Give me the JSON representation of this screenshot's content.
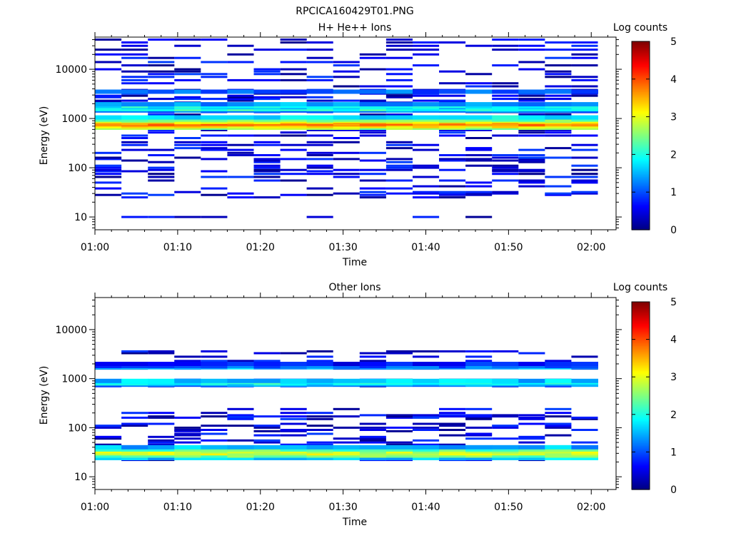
{
  "figure_title": "RPCICA160429T01.PNG",
  "colors": {
    "axis": "#000000",
    "background": "#ffffff"
  },
  "chart_data": [
    {
      "type": "heatmap",
      "title": "H+ He++ Ions",
      "xlabel": "Time",
      "ylabel": "Energy (eV)",
      "xtick_labels": [
        "01:00",
        "01:10",
        "01:20",
        "01:30",
        "01:40",
        "01:50",
        "02:00"
      ],
      "ytick_labels": [
        "10",
        "100",
        "1000",
        "10000"
      ],
      "y_scale": "log",
      "ylim": [
        5.5,
        45000
      ],
      "xlim_minutes": [
        0,
        63
      ],
      "colorbar": {
        "label": "Log counts",
        "ticks": [
          "0",
          "1",
          "2",
          "3",
          "4",
          "5"
        ],
        "range": [
          0,
          5
        ],
        "colormap": "jet"
      },
      "bin_minutes": 3.2,
      "bin_start_minutes": 0,
      "bins": 19,
      "energy_levels": [
        10,
        25,
        28,
        30,
        32,
        38,
        42,
        50,
        55,
        65,
        75,
        85,
        90,
        100,
        110,
        130,
        140,
        150,
        160,
        180,
        200,
        230,
        250,
        290,
        330,
        400,
        450,
        520,
        580,
        650,
        700,
        760,
        800,
        850,
        900,
        950,
        1050,
        1200,
        1350,
        1450,
        1550,
        1700,
        1800,
        1950,
        2100,
        2300,
        2500,
        2700,
        2900,
        3200,
        3500,
        3800,
        4500,
        5200,
        6000,
        7000,
        8000,
        9000,
        10000,
        12000,
        14000,
        17000,
        20000,
        25000,
        30000,
        35000,
        40000
      ],
      "persistent_bands": [
        {
          "energy": 650,
          "value": 2.6
        },
        {
          "energy": 700,
          "value": 3.1
        },
        {
          "energy": 760,
          "value": 3.6
        },
        {
          "energy": 800,
          "value": 3.7
        },
        {
          "energy": 850,
          "value": 3.4
        },
        {
          "energy": 900,
          "value": 2.9
        },
        {
          "energy": 950,
          "value": 2.4
        },
        {
          "energy": 1050,
          "value": 1.8
        },
        {
          "energy": 1450,
          "value": 1.2
        },
        {
          "energy": 1550,
          "value": 2.0
        },
        {
          "energy": 1700,
          "value": 1.7
        },
        {
          "energy": 1800,
          "value": 1.9
        },
        {
          "energy": 1950,
          "value": 1.4
        },
        {
          "energy": 3500,
          "value": 1.1
        }
      ]
    },
    {
      "type": "heatmap",
      "title": "Other Ions",
      "xlabel": "Time",
      "ylabel": "Energy (eV)",
      "xtick_labels": [
        "01:00",
        "01:10",
        "01:20",
        "01:30",
        "01:40",
        "01:50",
        "02:00"
      ],
      "ytick_labels": [
        "10",
        "100",
        "1000",
        "10000"
      ],
      "y_scale": "log",
      "ylim": [
        5.5,
        45000
      ],
      "xlim_minutes": [
        0,
        63
      ],
      "colorbar": {
        "label": "Log counts",
        "ticks": [
          "0",
          "1",
          "2",
          "3",
          "4",
          "5"
        ],
        "range": [
          0,
          5
        ],
        "colormap": "jet"
      },
      "bin_minutes": 3.2,
      "bin_start_minutes": 0,
      "bins": 19,
      "energy_levels": [
        22,
        24,
        27,
        30,
        33,
        36,
        40,
        45,
        50,
        55,
        60,
        65,
        70,
        75,
        85,
        90,
        100,
        110,
        120,
        150,
        160,
        170,
        180,
        200,
        240,
        700,
        750,
        800,
        850,
        900,
        950,
        1600,
        1700,
        1800,
        1900,
        2000,
        2100,
        2300,
        2800,
        3300,
        3600
      ],
      "persistent_bands": [
        {
          "energy": 24,
          "value": 1.6
        },
        {
          "energy": 27,
          "value": 2.4
        },
        {
          "energy": 30,
          "value": 2.9
        },
        {
          "energy": 33,
          "value": 2.8
        },
        {
          "energy": 36,
          "value": 2.3
        },
        {
          "energy": 40,
          "value": 1.5
        },
        {
          "energy": 750,
          "value": 1.3
        },
        {
          "energy": 800,
          "value": 1.8
        },
        {
          "energy": 850,
          "value": 2.0
        },
        {
          "energy": 900,
          "value": 1.6
        },
        {
          "energy": 1700,
          "value": 1.5
        },
        {
          "energy": 1800,
          "value": 1.1
        },
        {
          "energy": 2000,
          "value": 0.7
        }
      ]
    }
  ]
}
